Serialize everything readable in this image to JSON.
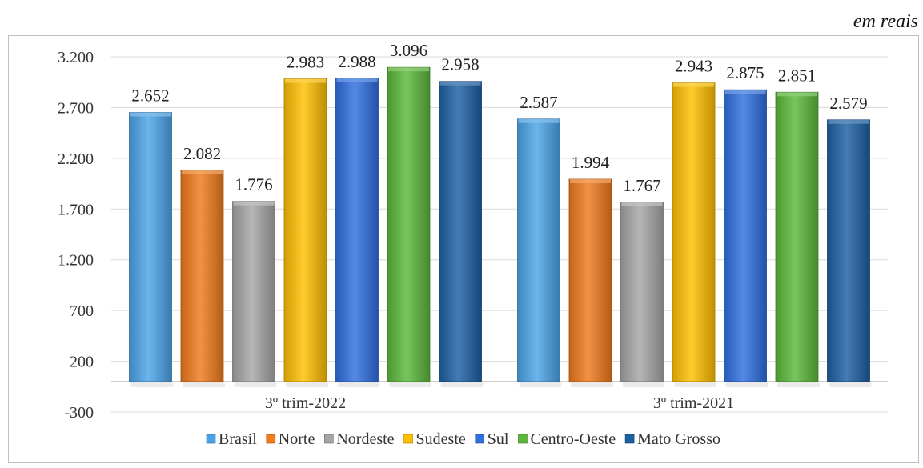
{
  "unit_note": "em reais",
  "chart_data": {
    "type": "bar",
    "categories": [
      "3º trim-2022",
      "3º trim-2021"
    ],
    "series": [
      {
        "name": "Brasil",
        "values": [
          2652,
          2587
        ],
        "labels": [
          "2.652",
          "2.587"
        ],
        "color": "#4aa3e8"
      },
      {
        "name": "Norte",
        "values": [
          2082,
          1994
        ],
        "labels": [
          "2.082",
          "1.994"
        ],
        "color": "#f07a1c"
      },
      {
        "name": "Nordeste",
        "values": [
          1776,
          1767
        ],
        "labels": [
          "1.776",
          "1.767"
        ],
        "color": "#a6a6a6"
      },
      {
        "name": "Sudeste",
        "values": [
          2983,
          2943
        ],
        "labels": [
          "2.983",
          "2.943"
        ],
        "color": "#ffc000"
      },
      {
        "name": "Sul",
        "values": [
          2988,
          2875
        ],
        "labels": [
          "2.988",
          "2.875"
        ],
        "color": "#2f6fe0"
      },
      {
        "name": "Centro-Oeste",
        "values": [
          3096,
          2851
        ],
        "labels": [
          "3.096",
          "2.851"
        ],
        "color": "#5cb83a"
      },
      {
        "name": "Mato Grosso",
        "values": [
          2958,
          2579
        ],
        "labels": [
          "2.958",
          "2.579"
        ],
        "color": "#1c5fa3"
      }
    ],
    "yticks": [
      -300,
      200,
      700,
      1200,
      1700,
      2200,
      2700,
      3200
    ],
    "ytick_labels": [
      "-300",
      "200",
      "700",
      "1.200",
      "1.700",
      "2.200",
      "2.700",
      "3.200"
    ],
    "ylim": [
      -300,
      3200
    ],
    "baseline": 0,
    "grid": true,
    "legend_position": "bottom"
  }
}
